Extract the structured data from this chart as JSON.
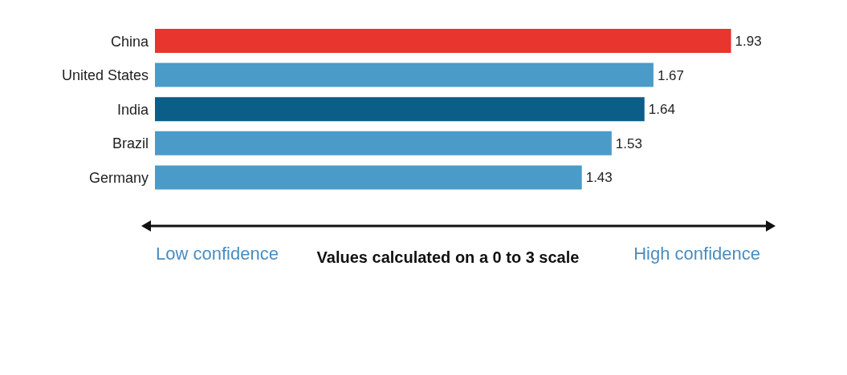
{
  "chart_data": {
    "type": "bar",
    "orientation": "horizontal",
    "categories": [
      "China",
      "United States",
      "India",
      "Brazil",
      "Germany"
    ],
    "values": [
      1.93,
      1.67,
      1.64,
      1.53,
      1.43
    ],
    "colors": [
      "#e8352e",
      "#4a9bc8",
      "#0b5e88",
      "#4a9bc8",
      "#4a9bc8"
    ],
    "data_labels": true,
    "xlabel": "Values calculated on a 0 to 3 scale",
    "annotations": [
      "Low confidence",
      "High confidence"
    ]
  }
}
